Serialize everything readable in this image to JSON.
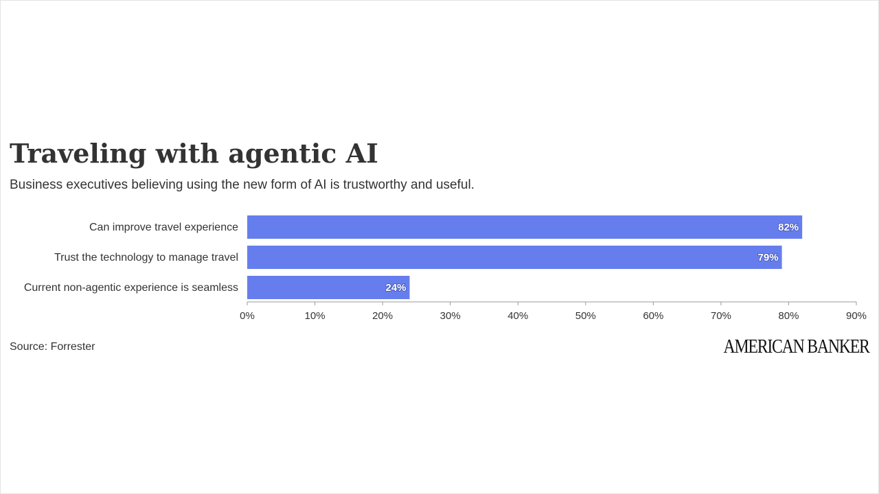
{
  "header": {
    "title": "Traveling with agentic AI",
    "subtitle": "Business executives believing using the new form of AI is trustworthy and useful."
  },
  "footer": {
    "source": "Source: Forrester",
    "logo_text": "AMERICAN BANKER"
  },
  "colors": {
    "bar": "#667eed",
    "axis": "#999999",
    "grid": "#eeeeee",
    "text": "#333333"
  },
  "chart_data": {
    "type": "bar",
    "orientation": "horizontal",
    "title": "Traveling with agentic AI",
    "subtitle": "Business executives believing using the new form of AI is trustworthy and useful.",
    "categories": [
      "Can improve travel experience",
      "Trust the technology to manage travel",
      "Current non-agentic experience is seamless"
    ],
    "values": [
      82,
      79,
      24
    ],
    "value_labels": [
      "82%",
      "79%",
      "24%"
    ],
    "xlim": [
      0,
      90
    ],
    "x_ticks": [
      0,
      10,
      20,
      30,
      40,
      50,
      60,
      70,
      80,
      90
    ],
    "x_tick_labels": [
      "0%",
      "10%",
      "20%",
      "30%",
      "40%",
      "50%",
      "60%",
      "70%",
      "80%",
      "90%"
    ],
    "xlabel": "",
    "ylabel": "",
    "grid": false,
    "legend": "none"
  }
}
